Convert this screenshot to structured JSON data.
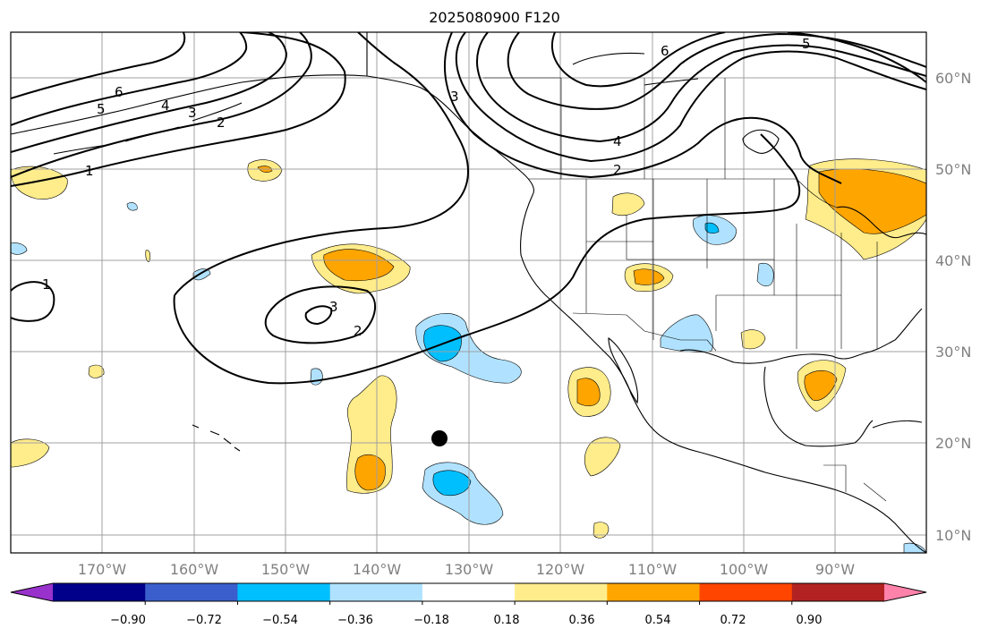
{
  "title": "2025080900 F120",
  "lat_labels": [
    "60°N",
    "50°N",
    "40°N",
    "30°N",
    "20°N",
    "10°N"
  ],
  "lon_labels": [
    "170°W",
    "160°W",
    "150°W",
    "140°W",
    "130°W",
    "120°W",
    "110°W",
    "100°W",
    "90°W"
  ],
  "colorbar": {
    "ticks": [
      "−0.90",
      "−0.72",
      "−0.54",
      "−0.36",
      "−0.18",
      "0.18",
      "0.36",
      "0.54",
      "0.72",
      "0.90"
    ],
    "colors": [
      "#9932cc",
      "#00008b",
      "#3a5fcd",
      "#00bfff",
      "#b0e2ff",
      "#ffffff",
      "#ffec8b",
      "#ffa500",
      "#ff4500",
      "#b22222",
      "#ff82ab"
    ]
  },
  "contour_labels": [
    "6",
    "5",
    "4",
    "3",
    "2",
    "1",
    "1",
    "3",
    "2",
    "6",
    "4",
    "2",
    "5",
    "3"
  ],
  "marker": "storm-position"
}
